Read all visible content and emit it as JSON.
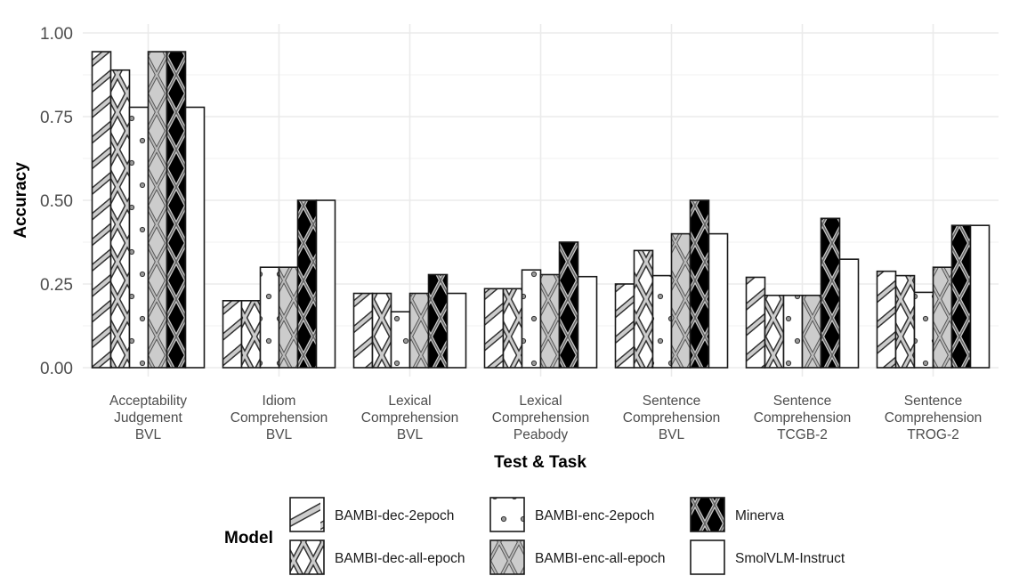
{
  "chart_data": {
    "type": "bar",
    "title": "",
    "xlabel": "Test & Task",
    "ylabel": "Accuracy",
    "ylim": [
      0,
      1.0
    ],
    "yticks": [
      "0.00",
      "0.25",
      "0.50",
      "0.75",
      "1.00"
    ],
    "grid": true,
    "legend_title": "Model",
    "legend_position": "bottom",
    "categories": [
      [
        "Acceptability",
        "Judgement",
        "BVL"
      ],
      [
        "Idiom",
        "Comprehension",
        "BVL"
      ],
      [
        "Lexical",
        "Comprehension",
        "BVL"
      ],
      [
        "Lexical",
        "Comprehension",
        "Peabody"
      ],
      [
        "Sentence",
        "Comprehension",
        "BVL"
      ],
      [
        "Sentence",
        "Comprehension",
        "TCGB-2"
      ],
      [
        "Sentence",
        "Comprehension",
        "TROG-2"
      ]
    ],
    "series": [
      {
        "name": "BAMBI-dec-2epoch",
        "pattern": "stripe",
        "fill": "#ffffff",
        "values": [
          0.944,
          0.2,
          0.222,
          0.236,
          0.25,
          0.27,
          0.288
        ]
      },
      {
        "name": "BAMBI-dec-all-epoch",
        "pattern": "crosshatch",
        "fill": "#ffffff",
        "values": [
          0.889,
          0.2,
          0.222,
          0.236,
          0.35,
          0.216,
          0.275
        ]
      },
      {
        "name": "BAMBI-enc-2epoch",
        "pattern": "dots",
        "fill": "#ffffff",
        "values": [
          0.778,
          0.3,
          0.167,
          0.292,
          0.275,
          0.216,
          0.225
        ]
      },
      {
        "name": "BAMBI-enc-all-epoch",
        "pattern": "crosshatch",
        "fill": "#cccccc",
        "values": [
          0.944,
          0.3,
          0.222,
          0.278,
          0.4,
          0.216,
          0.3
        ]
      },
      {
        "name": "Minerva",
        "pattern": "crosshatch",
        "fill": "#000000",
        "values": [
          0.944,
          0.5,
          0.278,
          0.375,
          0.5,
          0.446,
          0.425
        ]
      },
      {
        "name": "SmolVLM-Instruct",
        "pattern": "none",
        "fill": "#ffffff",
        "values": [
          0.778,
          0.5,
          0.222,
          0.272,
          0.4,
          0.324,
          0.425
        ]
      }
    ]
  }
}
